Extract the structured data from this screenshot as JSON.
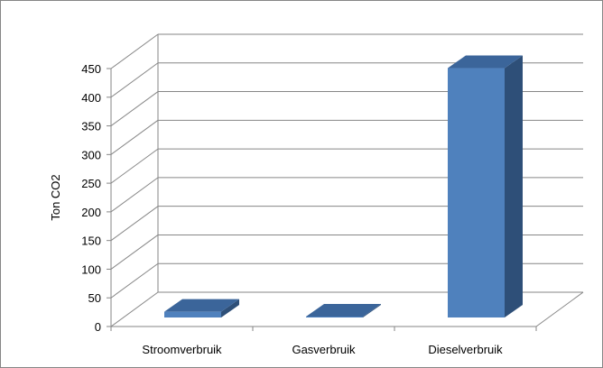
{
  "chart_data": {
    "type": "bar",
    "title": "",
    "xlabel": "",
    "ylabel": "Ton CO2",
    "categories": [
      "Stroomverbruik",
      "Gasverbruik",
      "Dieselverbruik"
    ],
    "values": [
      10,
      1,
      435
    ],
    "ylim": [
      0,
      450
    ],
    "yticks": [
      0,
      50,
      100,
      150,
      200,
      250,
      300,
      350,
      400,
      450
    ],
    "grid": true,
    "legend": "none",
    "style": "3d-column",
    "colors": {
      "front": "#4F81BD",
      "top": "#3B659A",
      "side": "#2E4F78",
      "grid": "#868686"
    }
  }
}
